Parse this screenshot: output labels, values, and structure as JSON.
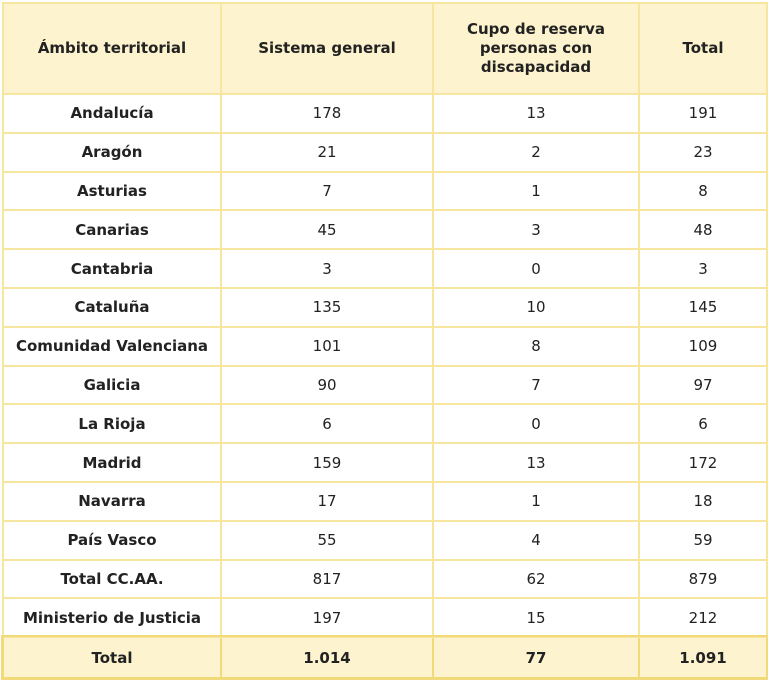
{
  "table": {
    "headers": [
      "Ámbito territorial",
      "Sistema general",
      "Cupo de reserva personas con discapacidad",
      "Total"
    ],
    "rows": [
      [
        "Andalucía",
        "178",
        "13",
        "191"
      ],
      [
        "Aragón",
        "21",
        "2",
        "23"
      ],
      [
        "Asturias",
        "7",
        "1",
        "8"
      ],
      [
        "Canarias",
        "45",
        "3",
        "48"
      ],
      [
        "Cantabria",
        "3",
        "0",
        "3"
      ],
      [
        "Cataluña",
        "135",
        "10",
        "145"
      ],
      [
        "Comunidad Valenciana",
        "101",
        "8",
        "109"
      ],
      [
        "Galicia",
        "90",
        "7",
        "97"
      ],
      [
        "La Rioja",
        "6",
        "0",
        "6"
      ],
      [
        "Madrid",
        "159",
        "13",
        "172"
      ],
      [
        "Navarra",
        "17",
        "1",
        "18"
      ],
      [
        "País Vasco",
        "55",
        "4",
        "59"
      ],
      [
        "Total CC.AA.",
        "817",
        "62",
        "879"
      ],
      [
        "Ministerio de Justicia",
        "197",
        "15",
        "212"
      ]
    ],
    "footer": [
      "Total",
      "1.014",
      "77",
      "1.091"
    ]
  },
  "colors": {
    "header_bg": "#fdf3cf",
    "border": "#f7e6a0",
    "footer_border": "#f2d97a"
  }
}
